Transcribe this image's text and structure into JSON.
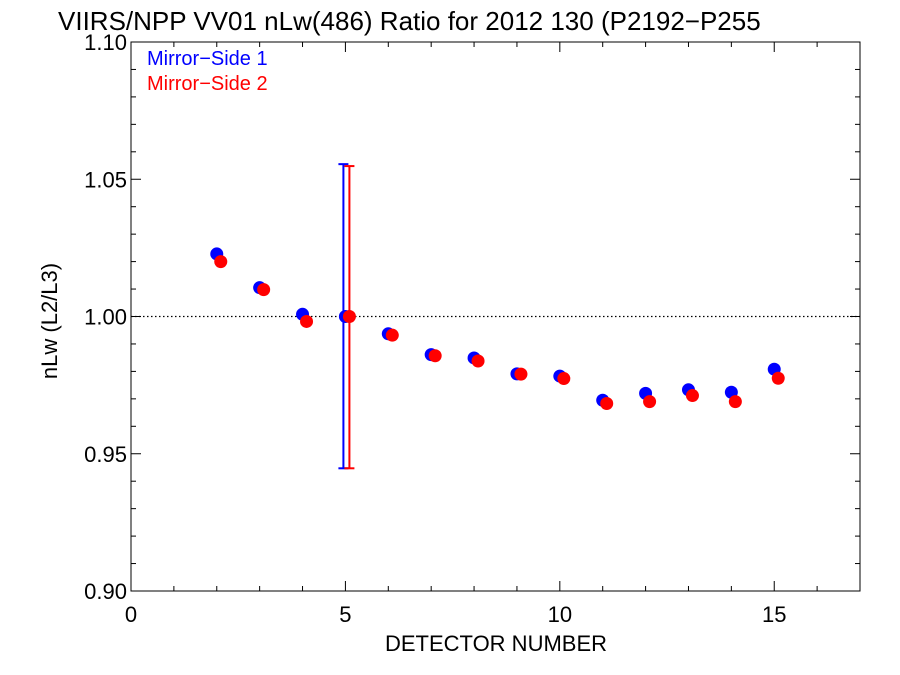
{
  "chart_data": {
    "type": "scatter",
    "title": "VIIRS/NPP VV01 nLw(486) Ratio for 2012 130 (P2192−P255",
    "xlabel": "DETECTOR NUMBER",
    "ylabel": "nLw (L2/L3)",
    "xlim": [
      0,
      17
    ],
    "ylim": [
      0.9,
      1.1
    ],
    "x_ticks": [
      0,
      5,
      10,
      15
    ],
    "x_tick_labels": [
      "0",
      "5",
      "10",
      "15"
    ],
    "y_ticks": [
      0.9,
      0.95,
      1.0,
      1.05,
      1.1
    ],
    "y_tick_labels": [
      "0.90",
      "0.95",
      "1.00",
      "1.05",
      "1.10"
    ],
    "reference_line": {
      "y": 1.0,
      "style": "dotted"
    },
    "legend_position": "top-left",
    "series": [
      {
        "name": "Mirror−Side 1",
        "color": "#0000ff",
        "x": [
          2,
          3,
          4,
          5,
          6,
          7,
          8,
          9,
          10,
          11,
          12,
          13,
          14,
          15
        ],
        "y": [
          1.0228,
          1.0105,
          1.0008,
          1.0,
          0.9937,
          0.9861,
          0.9849,
          0.9791,
          0.9783,
          0.9695,
          0.972,
          0.9733,
          0.9724,
          0.9808
        ],
        "error_bars": [
          {
            "x": 5,
            "low": 0.9447,
            "high": 1.0555
          }
        ]
      },
      {
        "name": "Mirror−Side 2",
        "color": "#ff0000",
        "x": [
          2,
          3,
          4,
          5,
          6,
          7,
          8,
          9,
          10,
          11,
          12,
          13,
          14,
          15
        ],
        "y": [
          1.02,
          1.0098,
          0.9982,
          1.0,
          0.9932,
          0.9857,
          0.9838,
          0.979,
          0.9774,
          0.9683,
          0.969,
          0.9712,
          0.969,
          0.9775
        ],
        "error_bars": [
          {
            "x": 5,
            "low": 0.9447,
            "high": 1.0548
          }
        ]
      }
    ]
  }
}
